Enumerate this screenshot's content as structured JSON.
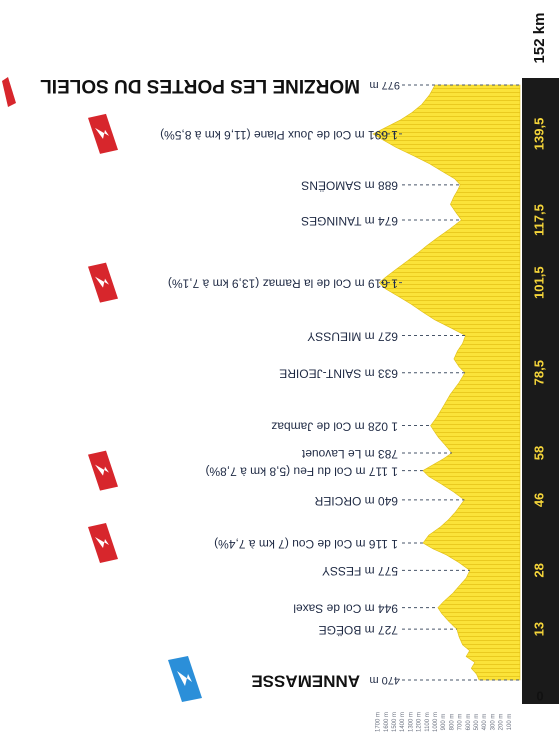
{
  "chart_data": {
    "type": "area",
    "distance_max": 152,
    "elevation_range": [
      0,
      1700
    ],
    "scale_ticks": [
      "1700 m",
      "1600 m",
      "1500 m",
      "1400 m",
      "1300 m",
      "1200 m",
      "1100 m",
      "1000 m",
      "900 m",
      "800 m",
      "700 m",
      "600 m",
      "500 m",
      "400 m",
      "300 m",
      "200 m",
      "100 m"
    ],
    "km_markers": [
      "13",
      "28",
      "46",
      "58",
      "78,5",
      "101,5",
      "117,5",
      "139,5"
    ],
    "km_start": "0",
    "km_end": "152 km",
    "start": {
      "altitude": "470 m",
      "name": "ANNEMASSE"
    },
    "finish": {
      "altitude": "977 m",
      "name": "MORZINE LES PORTES DU SOLEIL"
    },
    "waypoints": [
      {
        "km": 13,
        "label": "727 m BOËGE"
      },
      {
        "km": 18.5,
        "label": "944 m Col de Saxel"
      },
      {
        "km": 28,
        "label": "577 m FESSY"
      },
      {
        "km": 35,
        "label": "1 116 m Col de Cou (7 km à 7,4%)",
        "climb": true
      },
      {
        "km": 46,
        "label": "640 m ORCIER"
      },
      {
        "km": 53.5,
        "label": "1 117 m Col du Feu (5,8 km à 7,8%)",
        "climb": true
      },
      {
        "km": 58,
        "label": "783 m Le Lavouet"
      },
      {
        "km": 65,
        "label": "1 028 m Col de Jambaz"
      },
      {
        "km": 78.5,
        "label": "633 m SAINT-JEOIRE"
      },
      {
        "km": 88,
        "label": "627 m MIEUSSY"
      },
      {
        "km": 101.5,
        "label": "1 619 m Col de la Ramaz (13,9 km à 7,1%)",
        "climb": true
      },
      {
        "km": 117.5,
        "label": "674 m TANINGES"
      },
      {
        "km": 126.5,
        "label": "688 m SAMOËNS"
      },
      {
        "km": 139.5,
        "label": "1 691 m Col de Joux Plane (11,6 km à 8,5%)",
        "climb": true
      }
    ],
    "profile": [
      [
        0,
        470
      ],
      [
        1.5,
        500
      ],
      [
        3,
        560
      ],
      [
        4.5,
        520
      ],
      [
        6,
        620
      ],
      [
        7.5,
        580
      ],
      [
        9,
        660
      ],
      [
        11,
        700
      ],
      [
        13,
        727
      ],
      [
        15,
        820
      ],
      [
        17,
        900
      ],
      [
        18.5,
        944
      ],
      [
        20,
        880
      ],
      [
        22,
        780
      ],
      [
        24,
        700
      ],
      [
        26,
        620
      ],
      [
        28,
        577
      ],
      [
        30,
        700
      ],
      [
        32,
        850
      ],
      [
        33.5,
        1000
      ],
      [
        35,
        1116
      ],
      [
        37,
        1050
      ],
      [
        39,
        920
      ],
      [
        41,
        820
      ],
      [
        43,
        740
      ],
      [
        46,
        640
      ],
      [
        48,
        760
      ],
      [
        50,
        900
      ],
      [
        52,
        1050
      ],
      [
        53.5,
        1117
      ],
      [
        55,
        1000
      ],
      [
        56.5,
        880
      ],
      [
        58,
        783
      ],
      [
        60,
        860
      ],
      [
        62,
        940
      ],
      [
        64,
        1000
      ],
      [
        65,
        1028
      ],
      [
        67,
        960
      ],
      [
        70,
        880
      ],
      [
        73,
        800
      ],
      [
        76,
        700
      ],
      [
        78.5,
        633
      ],
      [
        80,
        700
      ],
      [
        82,
        760
      ],
      [
        84,
        720
      ],
      [
        86,
        660
      ],
      [
        88,
        627
      ],
      [
        90,
        800
      ],
      [
        92,
        980
      ],
      [
        94,
        1120
      ],
      [
        96,
        1250
      ],
      [
        98,
        1400
      ],
      [
        100,
        1550
      ],
      [
        101.5,
        1619
      ],
      [
        103,
        1540
      ],
      [
        105,
        1420
      ],
      [
        107,
        1300
      ],
      [
        109,
        1180
      ],
      [
        111,
        1070
      ],
      [
        113,
        950
      ],
      [
        115,
        820
      ],
      [
        117.5,
        674
      ],
      [
        119.5,
        740
      ],
      [
        121.5,
        800
      ],
      [
        123.5,
        760
      ],
      [
        125,
        720
      ],
      [
        126.5,
        688
      ],
      [
        128,
        750
      ],
      [
        130,
        900
      ],
      [
        132,
        1050
      ],
      [
        134,
        1230
      ],
      [
        136,
        1420
      ],
      [
        138,
        1580
      ],
      [
        139.5,
        1691
      ],
      [
        141,
        1560
      ],
      [
        143,
        1380
      ],
      [
        145,
        1240
      ],
      [
        147,
        1130
      ],
      [
        149.5,
        1040
      ],
      [
        152,
        977
      ]
    ],
    "colors": {
      "profile": "#fbe339",
      "profile_stripe": "#e8c81c",
      "km_band": "#1a1a1a",
      "climb_badge": "#d7262c",
      "start_badge": "#2b8fd9"
    },
    "icons": {
      "climb": "mountain-climb-badge",
      "start": "start-flag-badge"
    }
  }
}
